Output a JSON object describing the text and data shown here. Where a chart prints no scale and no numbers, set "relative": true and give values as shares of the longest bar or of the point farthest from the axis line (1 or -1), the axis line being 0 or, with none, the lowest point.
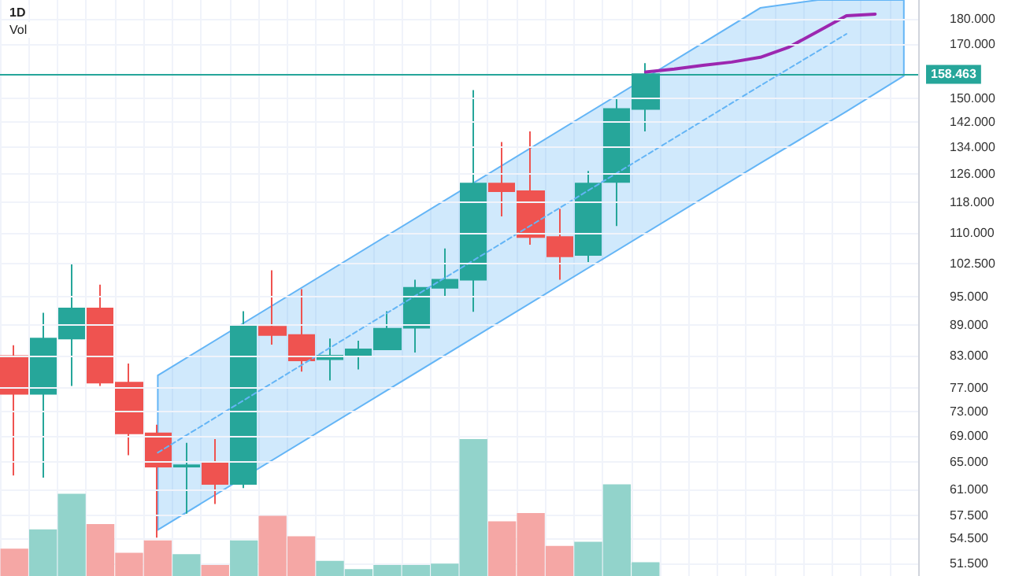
{
  "chart_data": [
    {
      "type": "candlestick",
      "title": "1D",
      "annotations": [
        "Vol"
      ],
      "categories": [
        null,
        null,
        null,
        null,
        null,
        null,
        null,
        null,
        null,
        null,
        null,
        null,
        null,
        null,
        null,
        null,
        null,
        null,
        null,
        null,
        null,
        null,
        null,
        null,
        null,
        null,
        null,
        null,
        null,
        null,
        null,
        null
      ],
      "ohlc": [
        [
          82.9,
          85,
          63,
          76.0
        ],
        [
          76.0,
          91.6,
          62.7,
          86.3
        ],
        [
          86.3,
          102.4,
          77.4,
          92.5
        ],
        [
          92.5,
          97.7,
          77.4,
          78.0
        ],
        [
          78.0,
          81.5,
          66.0,
          69.4
        ],
        [
          69.4,
          70.8,
          54.6,
          64.3
        ],
        [
          64.3,
          67.9,
          57.7,
          64.5
        ],
        [
          64.8,
          68.5,
          59.0,
          61.8
        ],
        [
          61.8,
          91.9,
          61.2,
          88.9
        ],
        [
          88.7,
          101.0,
          85.1,
          87.0
        ],
        [
          87.0,
          96.7,
          80.0,
          82.1
        ],
        [
          82.3,
          86.3,
          78.4,
          83.0
        ],
        [
          83.0,
          85.9,
          80.4,
          84.2
        ],
        [
          84.2,
          91.9,
          84.2,
          88.3
        ],
        [
          88.5,
          98.8,
          83.6,
          97.0
        ],
        [
          97.0,
          106.2,
          95.2,
          98.8
        ],
        [
          98.8,
          152.8,
          91.8,
          123.3
        ],
        [
          123.3,
          135.6,
          114.3,
          121.1
        ],
        [
          121.1,
          139.0,
          107.1,
          109.0
        ],
        [
          109.0,
          116.3,
          98.8,
          104.3
        ],
        [
          104.6,
          126.9,
          102.9,
          123.3
        ],
        [
          123.7,
          150.1,
          111.8,
          146.3
        ],
        [
          146.3,
          162.6,
          139.0,
          158.5
        ],
        null,
        null,
        null,
        null,
        null,
        null,
        null,
        null,
        null
      ],
      "colors": [
        "#ef5350",
        "#26a69a",
        "#26a69a",
        "#ef5350",
        "#ef5350",
        "#ef5350",
        "#26a69a",
        "#ef5350",
        "#26a69a",
        "#ef5350",
        "#ef5350",
        "#26a69a",
        "#26a69a",
        "#26a69a",
        "#26a69a",
        "#26a69a",
        "#26a69a",
        "#ef5350",
        "#ef5350",
        "#ef5350",
        "#26a69a",
        "#26a69a",
        "#26a69a",
        null,
        null,
        null,
        null,
        null,
        null,
        null,
        null,
        null
      ],
      "ylim": [
        50,
        188
      ],
      "yticks": [
        {
          "value": 51.5,
          "label": "51.500"
        },
        {
          "value": 54.5,
          "label": "54.500"
        },
        {
          "value": 57.5,
          "label": "57.500"
        },
        {
          "value": 61,
          "label": "61.000"
        },
        {
          "value": 65,
          "label": "65.000"
        },
        {
          "value": 69,
          "label": "69.000"
        },
        {
          "value": 73,
          "label": "73.000"
        },
        {
          "value": 77,
          "label": "77.000"
        },
        {
          "value": 83,
          "label": "83.000"
        },
        {
          "value": 89,
          "label": "89.000"
        },
        {
          "value": 95,
          "label": "95.000"
        },
        {
          "value": 102.5,
          "label": "102.500"
        },
        {
          "value": 110,
          "label": "110.000"
        },
        {
          "value": 118,
          "label": "118.000"
        },
        {
          "value": 126,
          "label": "126.000"
        },
        {
          "value": 134,
          "label": "134.000"
        },
        {
          "value": 142,
          "label": "142.000"
        },
        {
          "value": 150,
          "label": "150.000"
        },
        {
          "value": 170,
          "label": "170.000"
        },
        {
          "value": 180,
          "label": "180.000"
        }
      ],
      "log": true,
      "grid": true,
      "tick_labels": "y",
      "marker": "none",
      "ref_lines": [
        {
          "axis": "y",
          "value": 158.463,
          "label": "158.463",
          "color": "#26a69a"
        }
      ],
      "series": [
        {
          "type": "line",
          "color": "#64b5f6",
          "line_style": "dashed",
          "values": [
            null,
            null,
            null,
            null,
            null,
            66.4,
            null,
            null,
            null,
            null,
            null,
            null,
            null,
            null,
            null,
            null,
            null,
            null,
            null,
            null,
            null,
            null,
            null,
            null,
            null,
            null,
            154.4,
            null,
            167.1,
            173.9,
            null,
            null
          ],
          "lower": [
            null,
            null,
            null,
            null,
            null,
            55.6,
            null,
            null,
            null,
            null,
            null,
            null,
            null,
            null,
            null,
            null,
            null,
            null,
            null,
            null,
            null,
            null,
            null,
            null,
            null,
            null,
            129.2,
            null,
            139.8,
            145.5,
            null,
            157.9
          ],
          "upper": [
            null,
            null,
            null,
            null,
            null,
            79.3,
            null,
            null,
            null,
            null,
            null,
            null,
            null,
            null,
            null,
            null,
            null,
            null,
            null,
            null,
            null,
            null,
            null,
            null,
            null,
            null,
            184.6,
            null,
            188,
            188,
            null,
            188
          ]
        },
        {
          "type": "line",
          "color": "#9c27b0",
          "line_style": "solid",
          "values": [
            null,
            null,
            null,
            null,
            null,
            null,
            null,
            null,
            null,
            null,
            null,
            null,
            null,
            null,
            null,
            null,
            null,
            null,
            null,
            null,
            null,
            null,
            159.3,
            160.4,
            161.8,
            163.0,
            164.8,
            168.7,
            174.9,
            181.3,
            182.0,
            null
          ]
        }
      ]
    },
    {
      "type": "bar",
      "relative": true,
      "tick_labels": false,
      "categories": [
        null,
        null,
        null,
        null,
        null,
        null,
        null,
        null,
        null,
        null,
        null,
        null,
        null,
        null,
        null,
        null,
        null,
        null,
        null,
        null,
        null,
        null,
        null,
        null,
        null,
        null,
        null,
        null,
        null,
        null,
        null,
        null
      ],
      "values": [
        0.2,
        0.34,
        0.6,
        0.38,
        0.17,
        0.26,
        0.16,
        0.08,
        0.26,
        0.44,
        0.29,
        0.11,
        0.05,
        0.08,
        0.08,
        0.09,
        1,
        0.4,
        0.46,
        0.22,
        0.25,
        0.67,
        0.1,
        null,
        null,
        null,
        null,
        null,
        null,
        null,
        null,
        null
      ],
      "colors": [
        "#f5a7a5",
        "#92d3cb",
        "#92d3cb",
        "#f5a7a5",
        "#f5a7a5",
        "#f5a7a5",
        "#92d3cb",
        "#f5a7a5",
        "#92d3cb",
        "#f5a7a5",
        "#f5a7a5",
        "#92d3cb",
        "#92d3cb",
        "#92d3cb",
        "#92d3cb",
        "#92d3cb",
        "#92d3cb",
        "#f5a7a5",
        "#f5a7a5",
        "#f5a7a5",
        "#92d3cb",
        "#92d3cb",
        "#92d3cb",
        null,
        null,
        null,
        null,
        null,
        null,
        null,
        null,
        null
      ]
    }
  ]
}
